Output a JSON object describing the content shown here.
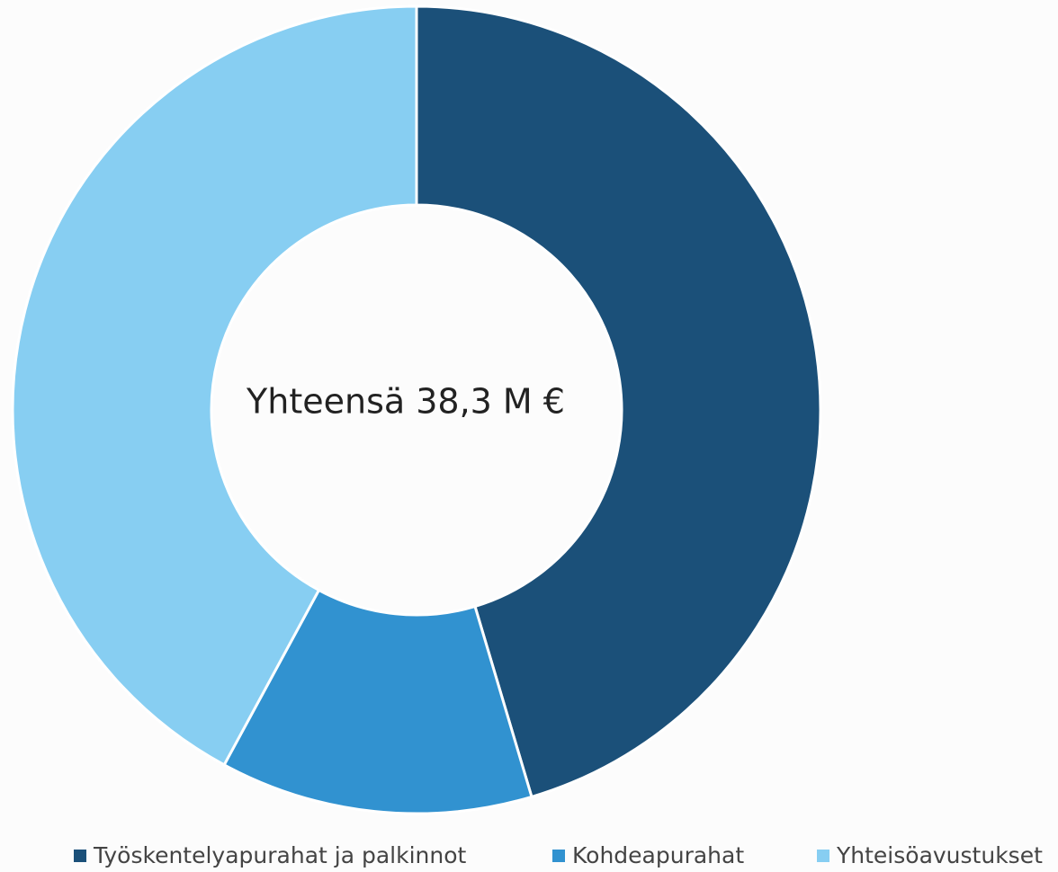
{
  "chart_data": {
    "type": "donut",
    "annotation": "Yhteensä 38,3 M €",
    "categories": [
      "Työskentelyapurahat ja palkinnot",
      "Kohdeapurahat",
      "Yhteisöavustukset"
    ],
    "values": [
      45.4,
      12.5,
      42.1
    ],
    "colors": [
      "#1b5079",
      "#3192d0",
      "#87cef2"
    ],
    "legend": "bottom"
  }
}
